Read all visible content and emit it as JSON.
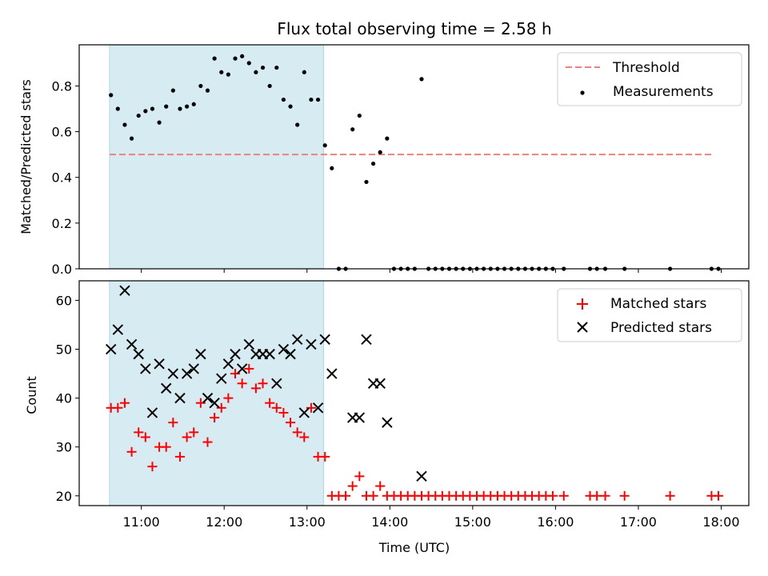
{
  "chart_data": [
    {
      "type": "scatter",
      "title": "Flux total observing time = 2.58 h",
      "xlabel": "",
      "ylabel": "Matched/Predicted stars",
      "ylim": [
        0,
        0.98
      ],
      "yticks": [
        "0.0",
        "0.2",
        "0.4",
        "0.6",
        "0.8"
      ],
      "xlim": [
        "10:15",
        "18:20"
      ],
      "highlight_span": [
        "10:37",
        "13:12"
      ],
      "grid": false,
      "legend_position": "upper right",
      "legend": [
        "Threshold",
        "Measurements"
      ],
      "threshold": {
        "name": "Threshold",
        "y": 0.5,
        "x_range": [
          "10:37",
          "17:55"
        ],
        "color": "#f08080"
      },
      "series": [
        {
          "name": "Measurements",
          "color": "#000000",
          "x": [
            "10:38",
            "10:43",
            "10:48",
            "10:53",
            "10:58",
            "11:03",
            "11:08",
            "11:13",
            "11:18",
            "11:23",
            "11:28",
            "11:33",
            "11:38",
            "11:43",
            "11:48",
            "11:53",
            "11:58",
            "12:03",
            "12:08",
            "12:13",
            "12:18",
            "12:23",
            "12:28",
            "12:33",
            "12:38",
            "12:43",
            "12:48",
            "12:53",
            "12:58",
            "13:03",
            "13:08",
            "13:13",
            "13:18",
            "13:23",
            "13:28",
            "13:33",
            "13:38",
            "13:43",
            "13:48",
            "13:53",
            "13:58",
            "14:03",
            "14:08",
            "14:13",
            "14:18",
            "14:23",
            "14:28",
            "14:33",
            "14:38",
            "14:43",
            "14:48",
            "14:53",
            "14:58",
            "15:03",
            "15:08",
            "15:13",
            "15:18",
            "15:23",
            "15:28",
            "15:33",
            "15:38",
            "15:43",
            "15:48",
            "15:53",
            "15:58",
            "16:06",
            "16:25",
            "16:30",
            "16:36",
            "16:50",
            "17:23",
            "17:53",
            "17:58"
          ],
          "y": [
            0.76,
            0.7,
            0.63,
            0.57,
            0.67,
            0.69,
            0.7,
            0.64,
            0.71,
            0.78,
            0.7,
            0.71,
            0.72,
            0.8,
            0.78,
            0.92,
            0.86,
            0.85,
            0.92,
            0.93,
            0.9,
            0.86,
            0.88,
            0.8,
            0.88,
            0.74,
            0.71,
            0.63,
            0.86,
            0.74,
            0.74,
            0.54,
            0.44,
            0,
            0,
            0.61,
            0.67,
            0.38,
            0.46,
            0.51,
            0.57,
            0,
            0,
            0,
            0,
            0.83,
            0,
            0,
            0,
            0,
            0,
            0,
            0,
            0,
            0,
            0,
            0,
            0,
            0,
            0,
            0,
            0,
            0,
            0,
            0,
            0,
            0,
            0,
            0,
            0,
            0,
            0,
            0
          ]
        }
      ]
    },
    {
      "type": "scatter",
      "title": "",
      "xlabel": "Time (UTC)",
      "ylabel": "Count",
      "ylim": [
        18,
        64
      ],
      "yticks": [
        "20",
        "30",
        "40",
        "50",
        "60"
      ],
      "xlim": [
        "10:15",
        "18:20"
      ],
      "xticks": [
        "11:00",
        "12:00",
        "13:00",
        "14:00",
        "15:00",
        "16:00",
        "17:00",
        "18:00"
      ],
      "highlight_span": [
        "10:37",
        "13:12"
      ],
      "grid": false,
      "legend_position": "upper right",
      "legend": [
        "Matched stars",
        "Predicted stars"
      ],
      "series": [
        {
          "name": "Matched stars",
          "marker": "+",
          "color": "#ff0000",
          "x": [
            "10:38",
            "10:43",
            "10:48",
            "10:53",
            "10:58",
            "11:03",
            "11:08",
            "11:13",
            "11:18",
            "11:23",
            "11:28",
            "11:33",
            "11:38",
            "11:43",
            "11:48",
            "11:53",
            "11:58",
            "12:03",
            "12:08",
            "12:13",
            "12:18",
            "12:23",
            "12:28",
            "12:33",
            "12:38",
            "12:43",
            "12:48",
            "12:53",
            "12:58",
            "13:03",
            "13:08",
            "13:13",
            "13:18",
            "13:23",
            "13:28",
            "13:33",
            "13:38",
            "13:43",
            "13:48",
            "13:53",
            "13:58",
            "14:03",
            "14:08",
            "14:13",
            "14:18",
            "14:23",
            "14:28",
            "14:33",
            "14:38",
            "14:43",
            "14:48",
            "14:53",
            "14:58",
            "15:03",
            "15:08",
            "15:13",
            "15:18",
            "15:23",
            "15:28",
            "15:33",
            "15:38",
            "15:43",
            "15:48",
            "15:53",
            "15:58",
            "16:06",
            "16:25",
            "16:30",
            "16:36",
            "16:50",
            "17:23",
            "17:53",
            "17:58"
          ],
          "y": [
            38,
            38,
            39,
            29,
            33,
            32,
            26,
            30,
            30,
            35,
            28,
            32,
            33,
            39,
            31,
            36,
            38,
            40,
            45,
            43,
            46,
            42,
            43,
            39,
            38,
            37,
            35,
            33,
            32,
            38,
            28,
            28,
            20,
            20,
            20,
            22,
            24,
            20,
            20,
            22,
            20,
            20,
            20,
            20,
            20,
            20,
            20,
            20,
            20,
            20,
            20,
            20,
            20,
            20,
            20,
            20,
            20,
            20,
            20,
            20,
            20,
            20,
            20,
            20,
            20,
            20,
            20,
            20,
            20,
            20,
            20,
            20,
            20
          ]
        },
        {
          "name": "Predicted stars",
          "marker": "x",
          "color": "#000000",
          "x": [
            "10:38",
            "10:43",
            "10:48",
            "10:53",
            "10:58",
            "11:03",
            "11:08",
            "11:13",
            "11:18",
            "11:23",
            "11:28",
            "11:33",
            "11:38",
            "11:43",
            "11:48",
            "11:53",
            "11:58",
            "12:03",
            "12:08",
            "12:13",
            "12:18",
            "12:23",
            "12:28",
            "12:33",
            "12:38",
            "12:43",
            "12:48",
            "12:53",
            "12:58",
            "13:03",
            "13:08",
            "13:13",
            "13:18",
            "13:33",
            "13:38",
            "13:43",
            "13:48",
            "13:53",
            "13:58",
            "14:23"
          ],
          "y": [
            50,
            54,
            62,
            51,
            49,
            46,
            37,
            47,
            42,
            45,
            40,
            45,
            46,
            49,
            40,
            39,
            44,
            47,
            49,
            46,
            51,
            49,
            49,
            49,
            43,
            50,
            49,
            52,
            37,
            51,
            38,
            52,
            45,
            36,
            36,
            52,
            43,
            43,
            35,
            24
          ]
        }
      ]
    }
  ]
}
